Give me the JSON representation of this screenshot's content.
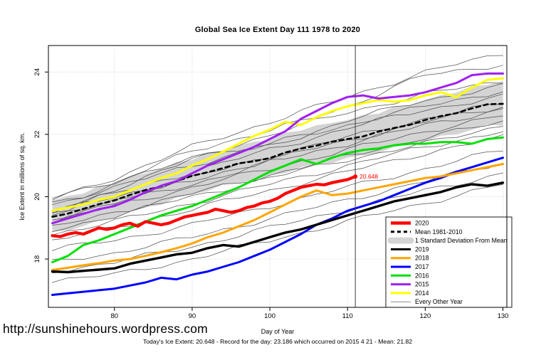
{
  "page": {
    "title": "Global Sea Ice Extent Day 111 1978 to 2020",
    "url_watermark": "http://sunshinehours.wordpress.com",
    "footer": "Today's Ice Extent: 20.648  - Record for the day: 23.186 which occurred on 2015 4 21  - Mean: 21.82"
  },
  "chart_data": {
    "type": "line",
    "title": "Global Sea Ice Extent Day 111 1978 to 2020",
    "xlabel": "Day of Year",
    "ylabel": "Ice Extent in millions of sq. km.",
    "xlim": [
      71.5,
      130.5
    ],
    "ylim": [
      16.45,
      24.85
    ],
    "xticks": [
      80,
      90,
      100,
      110,
      120,
      130
    ],
    "yticks": [
      18,
      20,
      22,
      24
    ],
    "grid": "dotted",
    "grid_color": "#c8c8c8",
    "vline_x": 111,
    "annotation": {
      "text": "20.648",
      "x": 111,
      "y": 20.648,
      "color": "#FF0000"
    },
    "band": {
      "name": "1 Standard Deviation From Mean",
      "color": "#d4d4d4",
      "x": [
        72,
        76,
        80,
        84,
        88,
        92,
        96,
        100,
        104,
        108,
        112,
        116,
        120,
        124,
        128,
        130
      ],
      "sigma": [
        0.52,
        0.54,
        0.55,
        0.56,
        0.57,
        0.58,
        0.59,
        0.6,
        0.61,
        0.62,
        0.63,
        0.64,
        0.66,
        0.67,
        0.68,
        0.68
      ]
    },
    "mean": {
      "name": "Mean 1981-2010",
      "color": "#000000",
      "style": "dashed",
      "x": [
        72,
        76,
        80,
        84,
        88,
        92,
        96,
        100,
        104,
        108,
        112,
        116,
        120,
        124,
        128,
        130
      ],
      "values": [
        19.35,
        19.6,
        19.9,
        20.2,
        20.5,
        20.8,
        21.05,
        21.25,
        21.55,
        21.75,
        21.95,
        22.2,
        22.45,
        22.7,
        22.95,
        23.0
      ]
    },
    "series": [
      {
        "name": "2014",
        "color": "#FFFF00",
        "width": 3,
        "x": [
          72,
          74,
          76,
          78,
          80,
          82,
          84,
          86,
          88,
          90,
          92,
          94,
          96,
          98,
          100,
          102,
          104,
          106,
          108,
          110,
          112,
          114,
          116,
          118,
          120,
          122,
          124,
          126,
          128,
          130
        ],
        "values": [
          19.55,
          19.65,
          19.75,
          19.9,
          20.0,
          20.2,
          20.4,
          20.6,
          20.75,
          21.0,
          21.2,
          21.45,
          21.7,
          21.95,
          22.15,
          22.4,
          22.3,
          22.55,
          22.75,
          22.9,
          23.0,
          23.1,
          23.05,
          23.1,
          23.25,
          23.35,
          23.2,
          23.5,
          23.75,
          23.8
        ]
      },
      {
        "name": "2015",
        "color": "#A020F0",
        "width": 3,
        "x": [
          72,
          74,
          76,
          78,
          80,
          82,
          84,
          86,
          88,
          90,
          92,
          94,
          96,
          98,
          100,
          102,
          104,
          106,
          108,
          110,
          112,
          114,
          116,
          118,
          120,
          122,
          124,
          126,
          128,
          130
        ],
        "values": [
          19.15,
          19.3,
          19.45,
          19.6,
          19.7,
          19.9,
          20.15,
          20.35,
          20.5,
          20.75,
          21.0,
          21.2,
          21.4,
          21.6,
          21.85,
          22.1,
          22.5,
          22.75,
          23.0,
          23.2,
          23.25,
          23.15,
          23.2,
          23.25,
          23.35,
          23.5,
          23.65,
          23.9,
          23.95,
          23.95
        ]
      },
      {
        "name": "2016",
        "color": "#00E000",
        "width": 3,
        "x": [
          72,
          74,
          76,
          78,
          80,
          82,
          84,
          86,
          88,
          90,
          92,
          94,
          96,
          98,
          100,
          102,
          104,
          106,
          108,
          110,
          112,
          114,
          116,
          118,
          120,
          122,
          124,
          126,
          128,
          130
        ],
        "values": [
          17.9,
          18.1,
          18.45,
          18.6,
          18.8,
          19.0,
          19.2,
          19.4,
          19.55,
          19.7,
          19.9,
          20.1,
          20.3,
          20.55,
          20.8,
          21.0,
          21.2,
          21.05,
          21.25,
          21.4,
          21.5,
          21.55,
          21.65,
          21.7,
          21.7,
          21.75,
          21.75,
          21.7,
          21.85,
          21.9
        ]
      },
      {
        "name": "2017",
        "color": "#0000FF",
        "width": 3,
        "x": [
          72,
          74,
          76,
          78,
          80,
          82,
          84,
          86,
          88,
          90,
          92,
          94,
          96,
          98,
          100,
          102,
          104,
          106,
          108,
          110,
          112,
          114,
          116,
          118,
          120,
          122,
          124,
          126,
          128,
          130
        ],
        "values": [
          16.85,
          16.9,
          16.95,
          17.0,
          17.05,
          17.15,
          17.25,
          17.4,
          17.35,
          17.5,
          17.6,
          17.75,
          17.9,
          18.1,
          18.3,
          18.55,
          18.8,
          19.1,
          19.3,
          19.55,
          19.7,
          19.85,
          20.05,
          20.25,
          20.45,
          20.6,
          20.8,
          20.95,
          21.1,
          21.25
        ]
      },
      {
        "name": "2018",
        "color": "#FFA500",
        "width": 3,
        "x": [
          72,
          74,
          76,
          78,
          80,
          82,
          84,
          86,
          88,
          90,
          92,
          94,
          96,
          98,
          100,
          102,
          104,
          106,
          108,
          110,
          112,
          114,
          116,
          118,
          120,
          122,
          124,
          126,
          128,
          130
        ],
        "values": [
          17.65,
          17.72,
          17.8,
          17.87,
          17.95,
          18.0,
          18.1,
          18.22,
          18.35,
          18.5,
          18.7,
          18.85,
          19.05,
          19.25,
          19.5,
          19.75,
          20.0,
          20.2,
          20.05,
          20.1,
          20.2,
          20.3,
          20.4,
          20.5,
          20.6,
          20.65,
          20.75,
          20.85,
          20.95,
          21.05
        ]
      },
      {
        "name": "2019",
        "color": "#000000",
        "width": 3.4,
        "x": [
          72,
          74,
          76,
          78,
          80,
          82,
          84,
          86,
          88,
          90,
          92,
          94,
          96,
          98,
          100,
          102,
          104,
          106,
          108,
          110,
          112,
          114,
          116,
          118,
          120,
          122,
          124,
          126,
          128,
          130
        ],
        "values": [
          17.6,
          17.58,
          17.62,
          17.66,
          17.7,
          17.85,
          17.95,
          18.05,
          18.15,
          18.2,
          18.35,
          18.45,
          18.4,
          18.55,
          18.7,
          18.85,
          18.95,
          19.1,
          19.25,
          19.4,
          19.55,
          19.7,
          19.85,
          19.95,
          20.05,
          20.15,
          20.3,
          20.4,
          20.35,
          20.45
        ]
      },
      {
        "name": "2020",
        "color": "#FF0000",
        "width": 4.2,
        "x": [
          72,
          73,
          74,
          75,
          76,
          77,
          78,
          79,
          80,
          81,
          82,
          83,
          84,
          85,
          86,
          87,
          88,
          89,
          90,
          91,
          92,
          93,
          94,
          95,
          96,
          97,
          98,
          99,
          100,
          101,
          102,
          103,
          104,
          105,
          106,
          107,
          108,
          109,
          110,
          111
        ],
        "values": [
          18.75,
          18.72,
          18.8,
          18.85,
          18.8,
          18.9,
          19.0,
          18.95,
          19.0,
          19.1,
          19.15,
          19.05,
          19.2,
          19.15,
          19.1,
          19.15,
          19.25,
          19.35,
          19.4,
          19.45,
          19.5,
          19.6,
          19.55,
          19.5,
          19.55,
          19.65,
          19.7,
          19.8,
          19.85,
          19.95,
          20.1,
          20.2,
          20.3,
          20.35,
          20.4,
          20.38,
          20.45,
          20.5,
          20.55,
          20.648
        ]
      }
    ],
    "other_years": {
      "name": "Every Other Year",
      "color": "#434343",
      "x": [
        72,
        80,
        90,
        100,
        110,
        120,
        130
      ],
      "lines": [
        [
          19.95,
          20.5,
          21.2,
          22.0,
          22.7,
          23.3,
          23.7
        ],
        [
          19.8,
          20.3,
          21.0,
          21.7,
          22.3,
          22.9,
          23.4
        ],
        [
          19.6,
          20.1,
          20.8,
          21.5,
          22.2,
          22.8,
          23.2
        ],
        [
          19.5,
          20.0,
          20.6,
          21.3,
          21.9,
          22.5,
          23.0
        ],
        [
          19.4,
          19.9,
          20.5,
          21.2,
          21.8,
          22.4,
          22.9
        ],
        [
          19.3,
          19.8,
          20.4,
          21.1,
          21.7,
          22.3,
          22.8
        ],
        [
          19.2,
          19.7,
          20.3,
          20.9,
          21.5,
          22.1,
          22.6
        ],
        [
          19.0,
          19.5,
          20.1,
          20.7,
          21.3,
          21.9,
          22.4
        ],
        [
          18.9,
          19.4,
          20.0,
          20.6,
          21.2,
          21.7,
          22.3
        ],
        [
          18.8,
          19.2,
          19.8,
          20.4,
          21.0,
          21.6,
          22.1
        ],
        [
          18.6,
          19.0,
          19.6,
          20.2,
          20.8,
          21.4,
          21.9
        ],
        [
          19.9,
          20.6,
          21.6,
          22.4,
          23.2,
          24.0,
          24.6
        ],
        [
          19.7,
          20.4,
          21.5,
          22.1,
          22.9,
          23.9,
          24.25
        ],
        [
          19.45,
          20.15,
          21.3,
          21.6,
          22.45,
          23.1,
          23.55
        ],
        [
          18.3,
          18.6,
          19.1,
          19.7,
          20.3,
          20.9,
          21.5
        ],
        [
          17.9,
          18.2,
          18.7,
          19.3,
          19.9,
          20.5,
          21.1
        ],
        [
          17.6,
          17.9,
          18.4,
          19.0,
          19.6,
          20.2,
          20.75
        ],
        [
          17.3,
          17.5,
          18.0,
          18.6,
          19.2,
          19.8,
          20.4
        ]
      ]
    },
    "legend": {
      "position": "inside-right",
      "items": [
        {
          "label": "2020",
          "color": "#FF0000",
          "style": "thick"
        },
        {
          "label": "Mean 1981-2010",
          "color": "#000000",
          "style": "dashed"
        },
        {
          "label": "1 Standard Deviation From Mean",
          "color": "#d4d4d4",
          "style": "band"
        },
        {
          "label": "2019",
          "color": "#000000",
          "style": "line"
        },
        {
          "label": "2018",
          "color": "#FFA500",
          "style": "line"
        },
        {
          "label": "2017",
          "color": "#0000FF",
          "style": "line"
        },
        {
          "label": "2016",
          "color": "#00E000",
          "style": "line"
        },
        {
          "label": "2015",
          "color": "#A020F0",
          "style": "line"
        },
        {
          "label": "2014",
          "color": "#FFFF00",
          "style": "line"
        },
        {
          "label": "Every Other Year",
          "color": "#8a8a8a",
          "style": "thin"
        }
      ]
    }
  }
}
